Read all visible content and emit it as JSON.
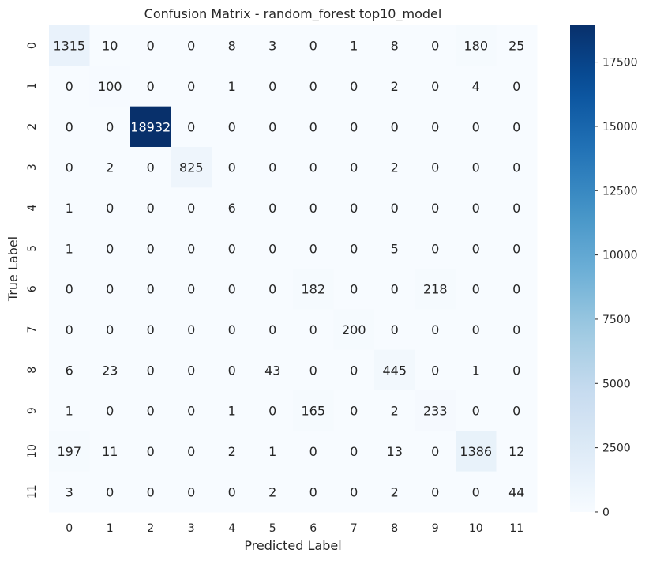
{
  "chart_data": {
    "type": "heatmap",
    "title": "Confusion Matrix - random_forest top10_model",
    "xlabel": "Predicted Label",
    "ylabel": "True Label",
    "x_categories": [
      "0",
      "1",
      "2",
      "3",
      "4",
      "5",
      "6",
      "7",
      "8",
      "9",
      "10",
      "11"
    ],
    "y_categories": [
      "0",
      "1",
      "2",
      "3",
      "4",
      "5",
      "6",
      "7",
      "8",
      "9",
      "10",
      "11"
    ],
    "matrix": [
      [
        1315,
        10,
        0,
        0,
        8,
        3,
        0,
        1,
        8,
        0,
        180,
        25
      ],
      [
        0,
        100,
        0,
        0,
        1,
        0,
        0,
        0,
        2,
        0,
        4,
        0
      ],
      [
        0,
        0,
        18932,
        0,
        0,
        0,
        0,
        0,
        0,
        0,
        0,
        0
      ],
      [
        0,
        2,
        0,
        825,
        0,
        0,
        0,
        0,
        2,
        0,
        0,
        0
      ],
      [
        1,
        0,
        0,
        0,
        6,
        0,
        0,
        0,
        0,
        0,
        0,
        0
      ],
      [
        1,
        0,
        0,
        0,
        0,
        0,
        0,
        0,
        5,
        0,
        0,
        0
      ],
      [
        0,
        0,
        0,
        0,
        0,
        0,
        182,
        0,
        0,
        218,
        0,
        0
      ],
      [
        0,
        0,
        0,
        0,
        0,
        0,
        0,
        200,
        0,
        0,
        0,
        0
      ],
      [
        6,
        23,
        0,
        0,
        0,
        43,
        0,
        0,
        445,
        0,
        1,
        0
      ],
      [
        1,
        0,
        0,
        0,
        1,
        0,
        165,
        0,
        2,
        233,
        0,
        0
      ],
      [
        197,
        11,
        0,
        0,
        2,
        1,
        0,
        0,
        13,
        0,
        1386,
        12
      ],
      [
        3,
        0,
        0,
        0,
        0,
        2,
        0,
        0,
        2,
        0,
        0,
        44
      ]
    ],
    "colorscale": "Blues",
    "vmin": 0,
    "vmax": 18932,
    "colorbar_ticks": [
      0,
      2500,
      5000,
      7500,
      10000,
      12500,
      15000,
      17500
    ],
    "colors": {
      "low": "#f7fbff",
      "high": "#08306b",
      "text_dark": "#262626",
      "text_light": "#ffffff"
    }
  }
}
